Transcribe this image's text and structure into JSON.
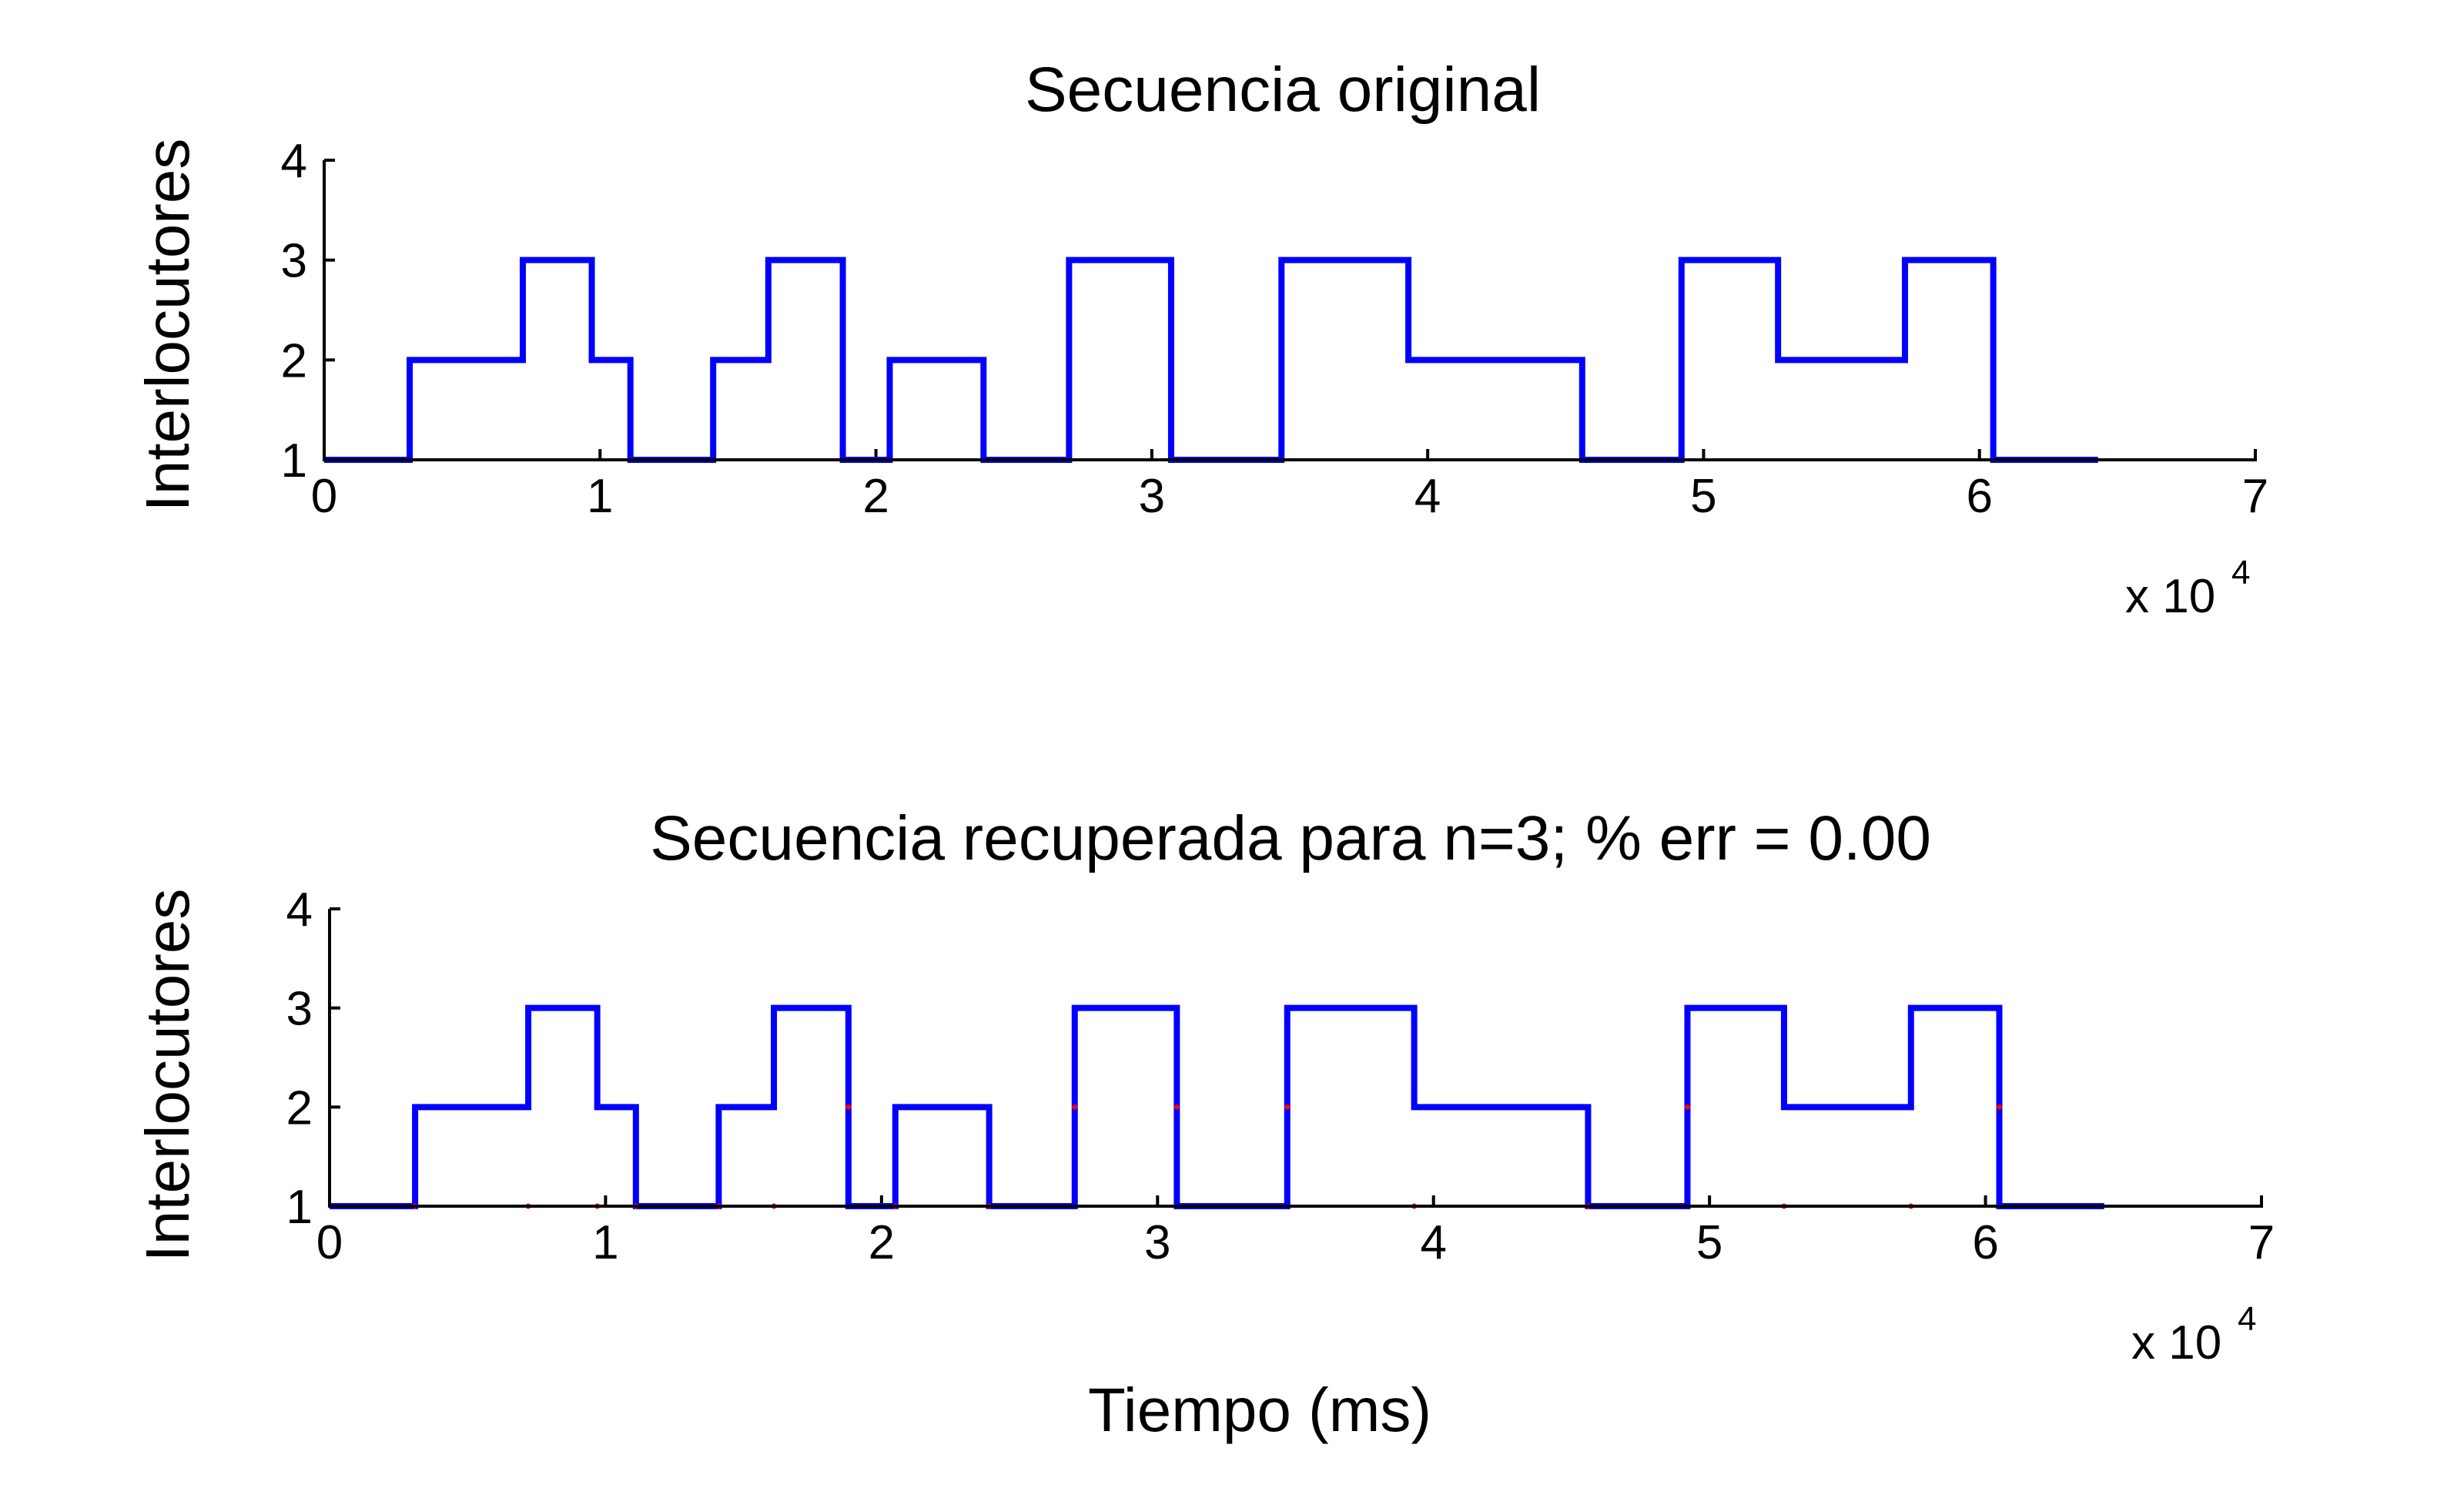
{
  "chart_data": [
    {
      "type": "line",
      "step": true,
      "title": "Secuencia original",
      "ylabel": "Interlocutores",
      "xlabel": "",
      "xlim": [
        0,
        70000
      ],
      "ylim": [
        1,
        4
      ],
      "xticks": [
        0,
        10000,
        20000,
        30000,
        40000,
        50000,
        60000,
        70000
      ],
      "xtick_labels": [
        "0",
        "1",
        "2",
        "3",
        "4",
        "5",
        "6",
        "7"
      ],
      "yticks": [
        1,
        2,
        3,
        4
      ],
      "ytick_labels": [
        "1",
        "2",
        "3",
        "4"
      ],
      "x_multiplier": {
        "base": "x 10",
        "exponent": "4"
      },
      "grid": false,
      "series": [
        {
          "color": "#0000ff",
          "x": [
            0,
            3100,
            7200,
            9700,
            11100,
            14100,
            16100,
            18800,
            20500,
            23900,
            27000,
            30700,
            34700,
            39300,
            45600,
            49200,
            52700,
            57300,
            60500,
            64300
          ],
          "y": [
            1,
            2,
            3,
            2,
            1,
            2,
            3,
            1,
            2,
            1,
            3,
            1,
            3,
            2,
            1,
            3,
            2,
            3,
            1,
            1
          ]
        }
      ]
    },
    {
      "type": "line",
      "step": true,
      "title": "Secuencia recuperada para n=3; % err = 0.00",
      "ylabel": "Interlocutores",
      "xlabel": "Tiempo (ms)",
      "xlim": [
        0,
        70000
      ],
      "ylim": [
        1,
        4
      ],
      "xticks": [
        0,
        10000,
        20000,
        30000,
        40000,
        50000,
        60000,
        70000
      ],
      "xtick_labels": [
        "0",
        "1",
        "2",
        "3",
        "4",
        "5",
        "6",
        "7"
      ],
      "yticks": [
        1,
        2,
        3,
        4
      ],
      "ytick_labels": [
        "1",
        "2",
        "3",
        "4"
      ],
      "x_multiplier": {
        "base": "x 10",
        "exponent": "4"
      },
      "grid": false,
      "series": [
        {
          "color": "#0000ff",
          "x": [
            0,
            3100,
            7200,
            9700,
            11100,
            14100,
            16100,
            18800,
            20500,
            23900,
            27000,
            30700,
            34700,
            39300,
            45600,
            49200,
            52700,
            57300,
            60500,
            64300
          ],
          "y": [
            1,
            2,
            3,
            2,
            1,
            2,
            3,
            1,
            2,
            1,
            3,
            1,
            3,
            2,
            1,
            3,
            2,
            3,
            1,
            1
          ]
        }
      ],
      "markers": {
        "color": "#ff0000",
        "x": [
          3100,
          7200,
          9700,
          11100,
          14100,
          16100,
          18800,
          20500,
          23900,
          27000,
          30700,
          34700,
          39300,
          45600,
          49200,
          52700,
          57300,
          60500
        ],
        "y": [
          1,
          1,
          1,
          1,
          1,
          1,
          2,
          1,
          1,
          2,
          2,
          2,
          1,
          1,
          2,
          1,
          1,
          2
        ]
      }
    }
  ]
}
